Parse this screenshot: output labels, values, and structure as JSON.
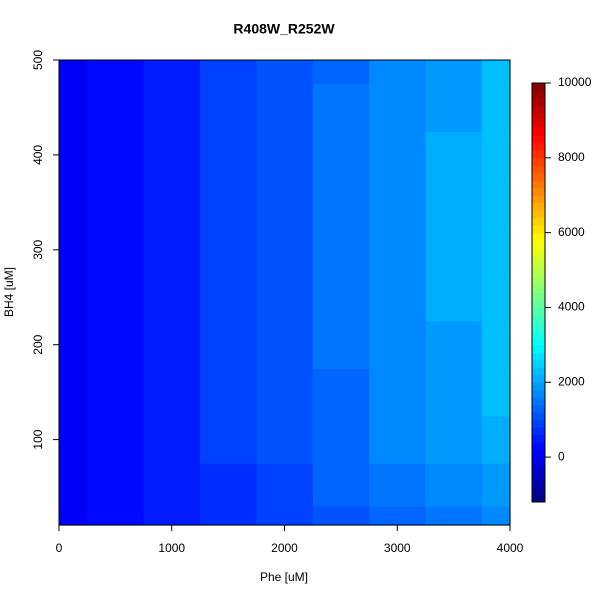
{
  "chart_data": {
    "type": "contour",
    "title": "R408W_R252W",
    "xlabel": "Phe [uM]",
    "ylabel": "BH4 [uM]",
    "x": [
      0,
      500,
      1000,
      1500,
      2000,
      2500,
      3000,
      3500,
      4000
    ],
    "y": [
      10,
      50,
      100,
      150,
      200,
      250,
      300,
      350,
      400,
      450,
      500
    ],
    "z": [
      [
        0,
        209,
        418,
        626,
        835,
        1044,
        1253,
        1462,
        1670
      ],
      [
        0,
        247,
        493,
        740,
        986,
        1233,
        1479,
        1726,
        1972
      ],
      [
        0,
        267,
        534,
        800,
        1067,
        1334,
        1601,
        1868,
        2134
      ],
      [
        0,
        278,
        557,
        835,
        1114,
        1392,
        1670,
        1949,
        2227
      ],
      [
        0,
        284,
        568,
        853,
        1137,
        1421,
        1705,
        1989,
        2274
      ],
      [
        0,
        290,
        580,
        870,
        1160,
        1450,
        1740,
        2030,
        2320
      ],
      [
        0,
        290,
        580,
        870,
        1160,
        1450,
        1740,
        2030,
        2320
      ],
      [
        0,
        290,
        580,
        870,
        1160,
        1450,
        1740,
        2030,
        2320
      ],
      [
        0,
        287,
        574,
        861,
        1148,
        1436,
        1723,
        2010,
        2297
      ],
      [
        0,
        281,
        563,
        844,
        1125,
        1407,
        1688,
        1969,
        2250
      ],
      [
        0,
        276,
        551,
        827,
        1102,
        1378,
        1653,
        1929,
        2204
      ]
    ],
    "xlim": [
      0,
      4000
    ],
    "xticks": [
      0,
      1000,
      2000,
      3000,
      4000
    ],
    "ylim": [
      10,
      500
    ],
    "yticks": [
      100,
      200,
      300,
      400,
      500
    ],
    "zlim": [
      -1200,
      10000
    ],
    "zticks": [
      0,
      2000,
      4000,
      6000,
      8000,
      10000
    ],
    "nlevels": 56,
    "palette": [
      "#00007F",
      "#0000FF",
      "#007FFF",
      "#00FFFF",
      "#7FFF7F",
      "#FFFF00",
      "#FF7F00",
      "#FF0000",
      "#7F0000"
    ]
  }
}
